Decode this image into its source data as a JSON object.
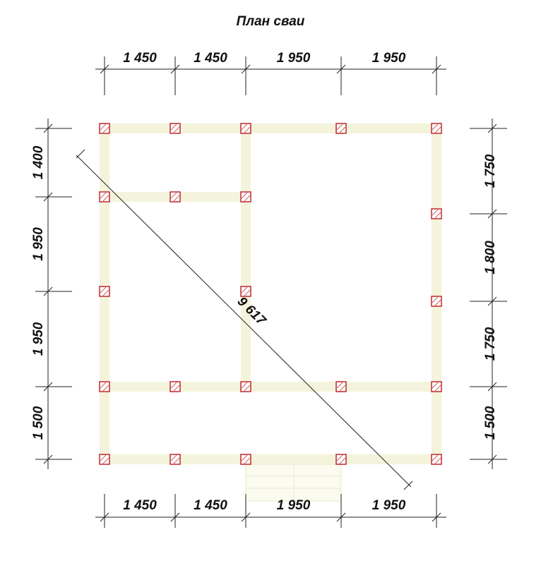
{
  "title": "План сваи",
  "dimensions": {
    "top": [
      "1 450",
      "1 450",
      "1 950",
      "1 950"
    ],
    "bottom": [
      "1 450",
      "1 450",
      "1 950",
      "1 950"
    ],
    "left": [
      "1 400",
      "1 950",
      "1 950",
      "1 500"
    ],
    "right": [
      "1 750",
      "1 800",
      "1 750",
      "1 500"
    ],
    "diagonal": "9 617"
  }
}
